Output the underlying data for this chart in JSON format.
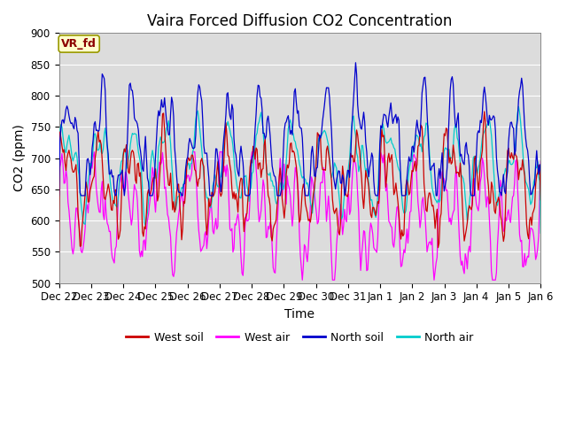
{
  "title": "Vaira Forced Diffusion CO2 Concentration",
  "ylabel": "CO2 (ppm)",
  "xlabel": "Time",
  "ylim": [
    500,
    900
  ],
  "yticks": [
    500,
    550,
    600,
    650,
    700,
    750,
    800,
    850,
    900
  ],
  "plot_bg_color": "#dcdcdc",
  "fig_bg_color": "#ffffff",
  "legend_label": "VR_fd",
  "series": {
    "west_soil": {
      "label": "West soil",
      "color": "#cc0000"
    },
    "west_air": {
      "label": "West air",
      "color": "#ff00ff"
    },
    "north_soil": {
      "label": "North soil",
      "color": "#0000cc"
    },
    "north_air": {
      "label": "North air",
      "color": "#00cccc"
    }
  },
  "n_points": 480,
  "x_tick_labels": [
    "Dec 22",
    "Dec 23",
    "Dec 24",
    "Dec 25",
    "Dec 26",
    "Dec 27",
    "Dec 28",
    "Dec 29",
    "Dec 30",
    "Dec 31",
    "Jan 1",
    "Jan 2",
    "Jan 3",
    "Jan 4",
    "Jan 5",
    "Jan 6"
  ],
  "title_fontsize": 12,
  "axis_fontsize": 10,
  "tick_fontsize": 8.5,
  "legend_fontsize": 9
}
